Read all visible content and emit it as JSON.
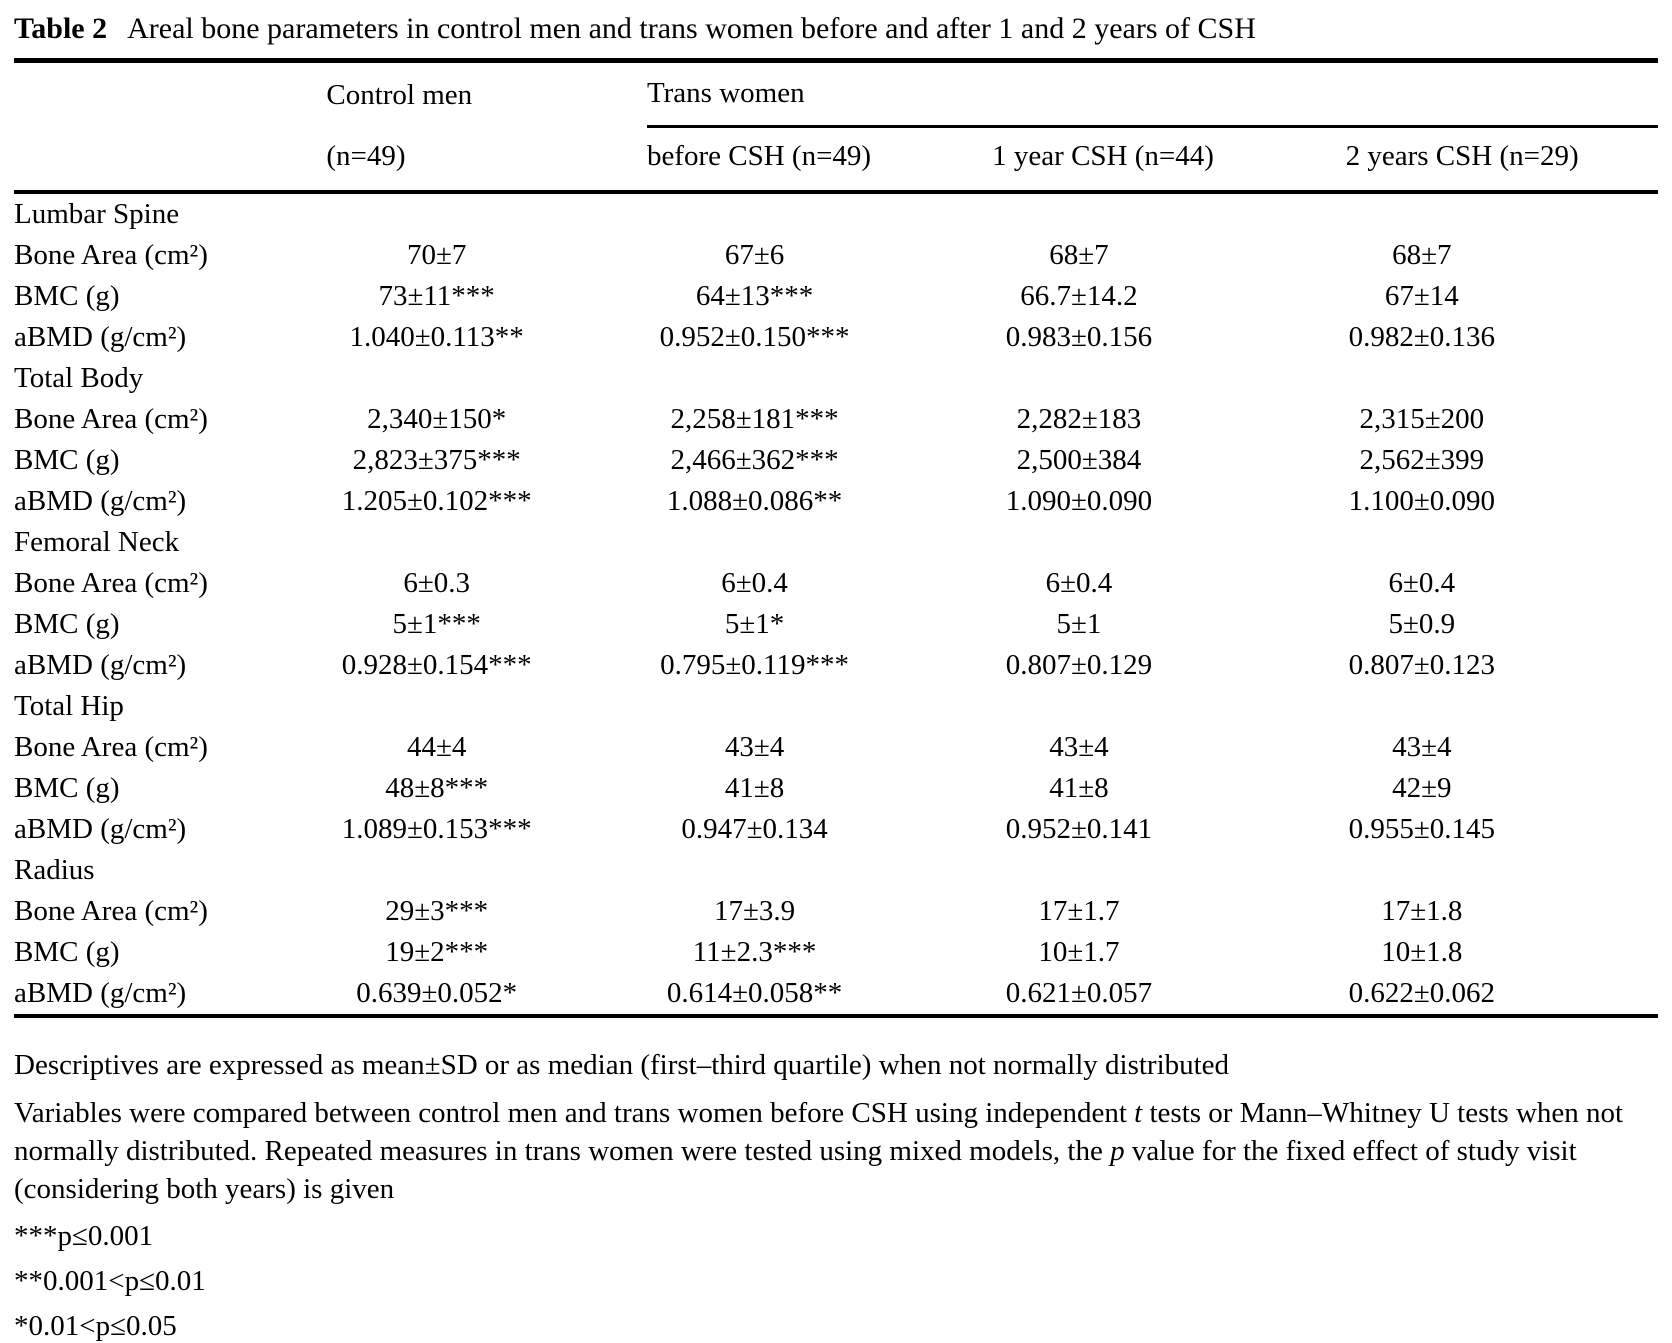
{
  "title": {
    "label": "Table 2",
    "text": "Areal bone parameters in control men and trans women before and after 1 and 2 years of CSH"
  },
  "columns": {
    "control_group": "Control men",
    "trans_group": "Trans women",
    "control_sub": [
      {
        "t": "("
      },
      {
        "t": "n",
        "i": true
      },
      {
        "t": "=49)"
      }
    ],
    "trans_subs": [
      [
        {
          "t": "before CSH ("
        },
        {
          "t": "n",
          "i": true
        },
        {
          "t": "=49)"
        }
      ],
      [
        {
          "t": "1 year CSH ("
        },
        {
          "t": "n",
          "i": true
        },
        {
          "t": "=44)"
        }
      ],
      [
        {
          "t": "2 years CSH ("
        },
        {
          "t": "n",
          "i": true
        },
        {
          "t": "=29)"
        }
      ]
    ]
  },
  "body": {
    "sections": [
      {
        "name": "Lumbar Spine",
        "rows": [
          {
            "label": "Bone Area (cm²)",
            "values": [
              "70±7",
              "67±6",
              "68±7",
              "68±7"
            ]
          },
          {
            "label": "BMC (g)",
            "values": [
              "73±11***",
              "64±13***",
              "66.7±14.2",
              "67±14"
            ]
          },
          {
            "label": "aBMD (g/cm²)",
            "values": [
              "1.040±0.113**",
              "0.952±0.150***",
              "0.983±0.156",
              "0.982±0.136"
            ]
          }
        ]
      },
      {
        "name": "Total Body",
        "rows": [
          {
            "label": "Bone Area (cm²)",
            "values": [
              "2,340±150*",
              "2,258±181***",
              "2,282±183",
              "2,315±200"
            ]
          },
          {
            "label": "BMC (g)",
            "values": [
              "2,823±375***",
              "2,466±362***",
              "2,500±384",
              "2,562±399"
            ]
          },
          {
            "label": "aBMD (g/cm²)",
            "values": [
              "1.205±0.102***",
              "1.088±0.086**",
              "1.090±0.090",
              "1.100±0.090"
            ]
          }
        ]
      },
      {
        "name": "Femoral Neck",
        "rows": [
          {
            "label": "Bone Area (cm²)",
            "values": [
              "6±0.3",
              "6±0.4",
              "6±0.4",
              "6±0.4"
            ]
          },
          {
            "label": "BMC (g)",
            "values": [
              "5±1***",
              "5±1*",
              "5±1",
              "5±0.9"
            ]
          },
          {
            "label": "aBMD (g/cm²)",
            "values": [
              "0.928±0.154***",
              "0.795±0.119***",
              "0.807±0.129",
              "0.807±0.123"
            ]
          }
        ]
      },
      {
        "name": "Total Hip",
        "rows": [
          {
            "label": "Bone Area (cm²)",
            "values": [
              "44±4",
              "43±4",
              "43±4",
              "43±4"
            ]
          },
          {
            "label": "BMC (g)",
            "values": [
              "48±8***",
              "41±8",
              "41±8",
              "42±9"
            ]
          },
          {
            "label": "aBMD (g/cm²)",
            "values": [
              "1.089±0.153***",
              "0.947±0.134",
              "0.952±0.141",
              "0.955±0.145"
            ]
          }
        ]
      },
      {
        "name": "Radius",
        "rows": [
          {
            "label": "Bone Area (cm²)",
            "values": [
              "29±3***",
              "17±3.9",
              "17±1.7",
              "17±1.8"
            ]
          },
          {
            "label": "BMC (g)",
            "values": [
              "19±2***",
              "11±2.3***",
              "10±1.7",
              "10±1.8"
            ]
          },
          {
            "label": "aBMD (g/cm²)",
            "values": [
              "0.639±0.052*",
              "0.614±0.058**",
              "0.621±0.057",
              "0.622±0.062"
            ]
          }
        ]
      }
    ]
  },
  "footnotes": {
    "line1": "Descriptives are expressed as mean±SD or as median (first–third quartile) when not normally distributed",
    "line2": [
      {
        "t": "Variables were compared between control men and trans women before CSH using independent "
      },
      {
        "t": "t",
        "i": true
      },
      {
        "t": " tests or Mann–Whitney U tests when not normally distributed. Repeated measures in trans women were tested using mixed models, the "
      },
      {
        "t": "p",
        "i": true
      },
      {
        "t": " value for the fixed effect of study visit (considering both years) is given"
      }
    ],
    "sig": [
      "***p≤0.001",
      "**0.001<p≤0.01",
      "*0.01<p≤0.05"
    ]
  }
}
